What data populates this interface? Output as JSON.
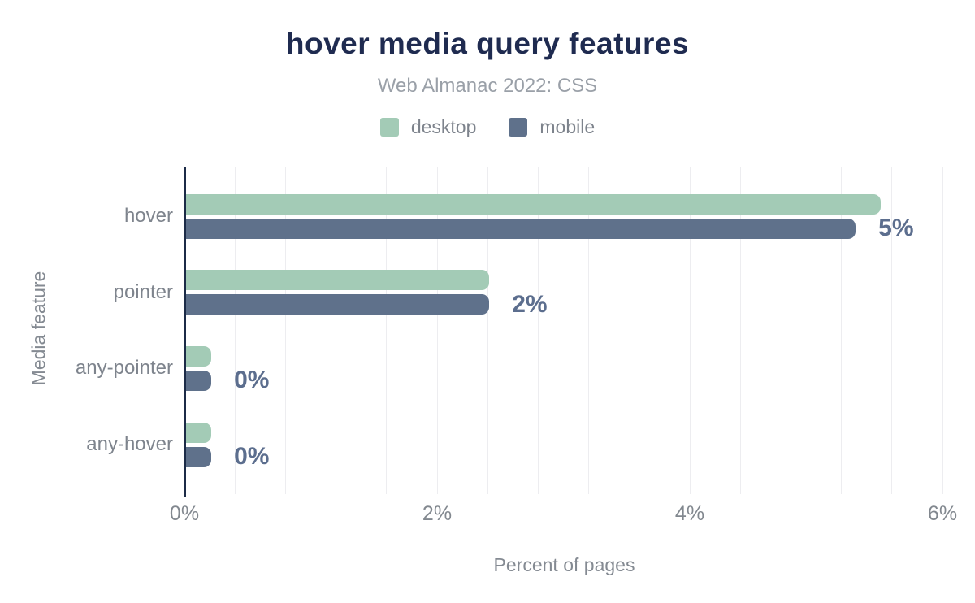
{
  "colors": {
    "background": "#ffffff",
    "title": "#1f2b50",
    "subtitle": "#9aa0a8",
    "legend_text": "#7d838c",
    "category_label": "#7e848d",
    "tick_label": "#82888f",
    "data_label": "#5c6e8e",
    "axis_line": "#1c2b47",
    "gridline": "#ededf0",
    "desktop": "#a3cbb6",
    "mobile": "#5f718b"
  },
  "chart_data": {
    "type": "bar",
    "orientation": "horizontal",
    "title": "hover media query features",
    "subtitle": "Web Almanac 2022: CSS",
    "xlabel": "Percent of pages",
    "ylabel": "Media feature",
    "categories": [
      "hover",
      "pointer",
      "any-pointer",
      "any-hover"
    ],
    "series": [
      {
        "name": "desktop",
        "color": "#a3cbb6",
        "values": [
          5.5,
          2.4,
          0.2,
          0.2
        ]
      },
      {
        "name": "mobile",
        "color": "#5f718b",
        "values": [
          5.3,
          2.4,
          0.2,
          0.2
        ]
      }
    ],
    "value_labels": [
      "5%",
      "2%",
      "0%",
      "0%"
    ],
    "x_ticks": [
      {
        "value": 0,
        "label": "0%"
      },
      {
        "value": 2,
        "label": "2%"
      },
      {
        "value": 4,
        "label": "4%"
      },
      {
        "value": 6,
        "label": "6%"
      }
    ],
    "xlim": [
      0,
      6
    ],
    "gridline_step": 0.4,
    "grid": true,
    "legend_position": "top"
  }
}
